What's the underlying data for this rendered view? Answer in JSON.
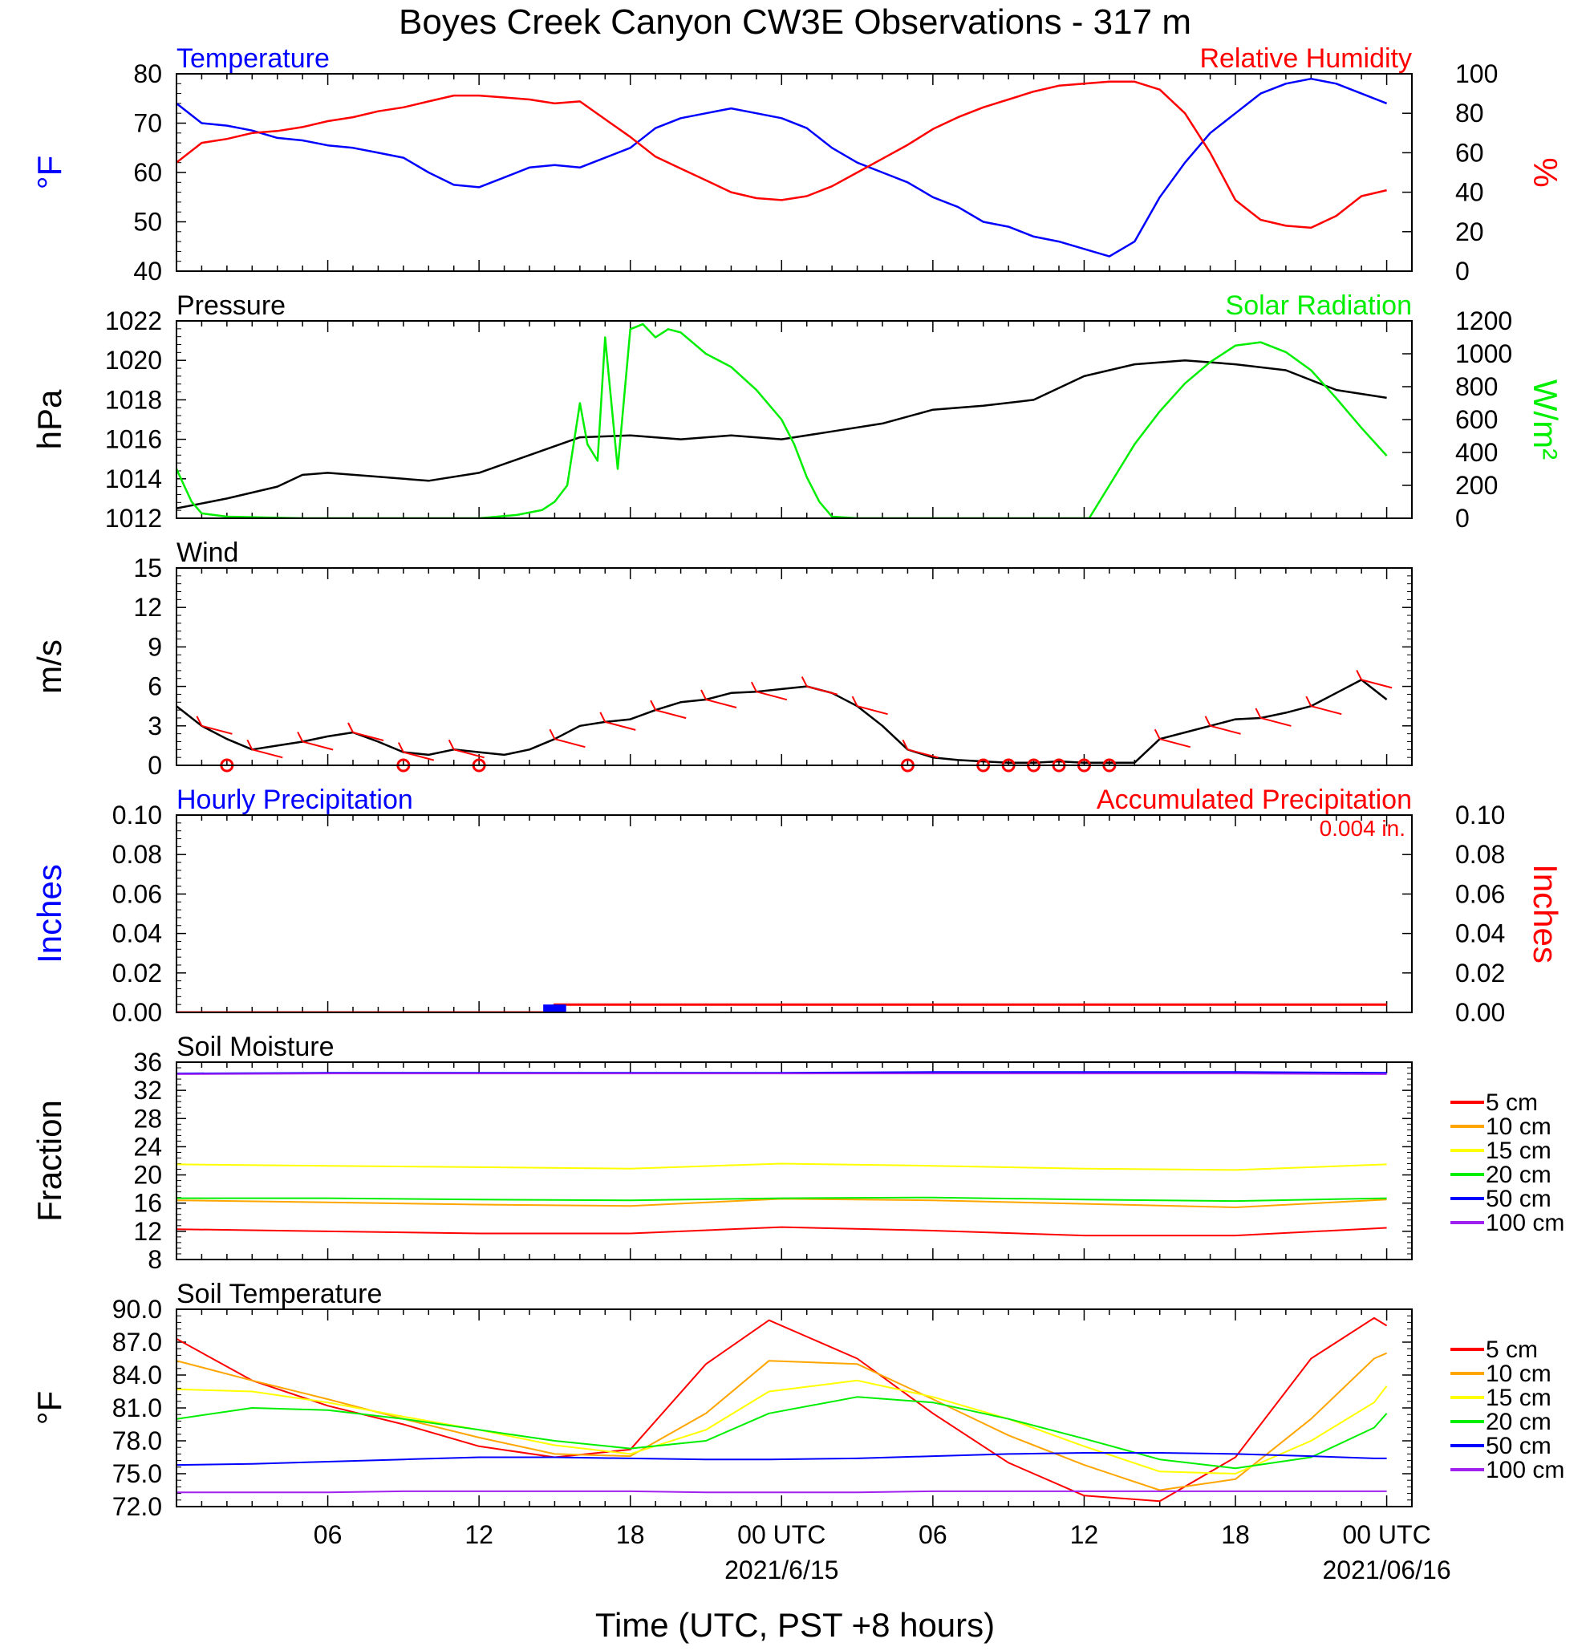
{
  "title": "Boyes Creek Canyon CW3E Observations - 317 m",
  "x_axis": {
    "label": "Time (UTC, PST +8 hours)",
    "ticks": [
      {
        "h": 6,
        "label": "06"
      },
      {
        "h": 12,
        "label": "12"
      },
      {
        "h": 18,
        "label": "18"
      },
      {
        "h": 24,
        "label": "00 UTC",
        "sub": "2021/6/15"
      },
      {
        "h": 30,
        "label": "06"
      },
      {
        "h": 36,
        "label": "12"
      },
      {
        "h": 42,
        "label": "18"
      },
      {
        "h": 48,
        "label": "00 UTC",
        "sub": "2021/06/16"
      }
    ],
    "range_hours": [
      0,
      49
    ]
  },
  "colors": {
    "temperature": "#0000ff",
    "humidity": "#ff0000",
    "pressure": "#000000",
    "solar": "#00ee00",
    "wind": "#000000",
    "barbs": "#ff0000",
    "hourly_precip": "#0000ff",
    "accum_precip": "#ff0000",
    "soil_5cm": "#ff0000",
    "soil_10cm": "#ffa500",
    "soil_15cm": "#ffff00",
    "soil_20cm": "#00ee00",
    "soil_50cm": "#0000ff",
    "soil_100cm": "#a020f0"
  },
  "chart_data": [
    {
      "type": "line",
      "id": "temp_rh",
      "title_left": "Temperature",
      "title_right": "Relative Humidity",
      "ylabel_left": "°F",
      "ylabel_right": "%",
      "ylim_left": [
        40,
        80
      ],
      "ylim_right": [
        0,
        100
      ],
      "yticks_left": [
        "40",
        "50",
        "60",
        "70",
        "80"
      ],
      "yticks_right": [
        "0",
        "20",
        "40",
        "60",
        "80",
        "100"
      ],
      "series": [
        {
          "name": "Temperature",
          "axis": "left",
          "color_key": "temperature",
          "x": [
            0,
            1,
            2,
            3,
            4,
            5,
            6,
            7,
            8,
            9,
            10,
            11,
            12,
            13,
            14,
            15,
            16,
            17,
            18,
            19,
            20,
            21,
            22,
            23,
            24,
            25,
            26,
            27,
            28,
            29,
            30,
            31,
            32,
            33,
            34,
            35,
            36,
            37,
            38,
            39,
            40,
            41,
            42,
            43,
            44,
            45,
            46,
            47,
            48
          ],
          "y": [
            74,
            70,
            69.5,
            68.5,
            67,
            66.5,
            65.5,
            65,
            64,
            63,
            60,
            57.5,
            57,
            59,
            61,
            61.5,
            61,
            63,
            65,
            69,
            71,
            72,
            73,
            72,
            71,
            69,
            65,
            62,
            60,
            58,
            55,
            53,
            50,
            49,
            47,
            46,
            44.5,
            43,
            46,
            55,
            62,
            68,
            72,
            76,
            78,
            79,
            78,
            76,
            74
          ]
        },
        {
          "name": "Relative Humidity",
          "axis": "right",
          "color_key": "humidity",
          "x": [
            0,
            1,
            2,
            3,
            4,
            5,
            6,
            7,
            8,
            9,
            10,
            11,
            12,
            13,
            14,
            15,
            16,
            17,
            18,
            19,
            20,
            21,
            22,
            23,
            24,
            25,
            26,
            27,
            28,
            29,
            30,
            31,
            32,
            33,
            34,
            35,
            36,
            37,
            38,
            39,
            40,
            41,
            42,
            43,
            44,
            45,
            46,
            47,
            48
          ],
          "y": [
            55,
            65,
            67,
            70,
            71,
            73,
            76,
            78,
            81,
            83,
            86,
            89,
            89,
            88,
            87,
            85,
            86,
            77,
            68,
            58,
            52,
            46,
            40,
            37,
            36,
            38,
            43,
            50,
            57,
            64,
            72,
            78,
            83,
            87,
            91,
            94,
            95,
            96,
            96,
            92,
            80,
            60,
            36,
            26,
            23,
            22,
            28,
            38,
            41
          ]
        }
      ]
    },
    {
      "type": "line",
      "id": "pressure_solar",
      "title_left": "Pressure",
      "title_right": "Solar Radiation",
      "ylabel_left": "hPa",
      "ylabel_right": "W/m²",
      "ylim_left": [
        1012,
        1022
      ],
      "ylim_right": [
        0,
        1200
      ],
      "yticks_left": [
        "1012",
        "1014",
        "1016",
        "1018",
        "1020",
        "1022"
      ],
      "yticks_right": [
        "0",
        "200",
        "400",
        "600",
        "800",
        "1000",
        "1200"
      ],
      "series": [
        {
          "name": "Pressure",
          "axis": "left",
          "color_key": "pressure",
          "x": [
            0,
            2,
            4,
            5,
            6,
            8,
            10,
            12,
            14,
            16,
            18,
            20,
            22,
            24,
            26,
            28,
            30,
            32,
            34,
            36,
            38,
            40,
            42,
            44,
            46,
            48
          ],
          "y": [
            1012.5,
            1013,
            1013.6,
            1014.2,
            1014.3,
            1014.1,
            1013.9,
            1014.3,
            1015.2,
            1016.1,
            1016.2,
            1016,
            1016.2,
            1016,
            1016.4,
            1016.8,
            1017.5,
            1017.7,
            1018,
            1019.2,
            1019.8,
            1020,
            1019.8,
            1019.5,
            1018.5,
            1018.1
          ]
        },
        {
          "name": "Solar Radiation",
          "axis": "right",
          "color_key": "solar",
          "x": [
            0,
            0.3,
            0.6,
            1,
            2,
            5,
            10,
            12,
            13.5,
            14.5,
            15,
            15.5,
            16,
            16.3,
            16.7,
            17,
            17.5,
            18,
            18.5,
            19,
            19.5,
            20,
            21,
            22,
            23,
            24,
            24.5,
            25,
            25.5,
            26,
            27,
            28,
            30,
            34,
            35.5,
            36.2,
            37,
            38,
            39,
            40,
            41,
            42,
            43,
            44,
            45,
            46,
            47,
            48
          ],
          "y": [
            300,
            200,
            100,
            30,
            10,
            0,
            0,
            0,
            20,
            50,
            100,
            200,
            700,
            450,
            350,
            1100,
            300,
            1150,
            1180,
            1100,
            1150,
            1130,
            1000,
            920,
            780,
            600,
            450,
            250,
            100,
            10,
            0,
            0,
            0,
            0,
            0,
            0,
            200,
            450,
            650,
            820,
            950,
            1050,
            1070,
            1010,
            900,
            730,
            550,
            380
          ]
        }
      ]
    },
    {
      "type": "line",
      "id": "wind",
      "title_left": "Wind",
      "ylabel_left": "m/s",
      "ylim_left": [
        0,
        15
      ],
      "yticks_left": [
        "0",
        "3",
        "6",
        "9",
        "12",
        "15"
      ],
      "series": [
        {
          "name": "Wind",
          "axis": "left",
          "color_key": "wind",
          "x": [
            0,
            1,
            2,
            3,
            4,
            5,
            6,
            7,
            8,
            9,
            10,
            11,
            12,
            13,
            14,
            15,
            16,
            17,
            18,
            19,
            20,
            21,
            22,
            23,
            24,
            25,
            26,
            27,
            28,
            29,
            30,
            31,
            32,
            33,
            34,
            35,
            36,
            37,
            38,
            39,
            40,
            41,
            42,
            43,
            44,
            45,
            46,
            47,
            48
          ],
          "y": [
            4.5,
            3,
            2,
            1.2,
            1.5,
            1.8,
            2.2,
            2.5,
            1.8,
            1,
            0.8,
            1.2,
            1,
            0.8,
            1.2,
            2,
            3,
            3.3,
            3.5,
            4.2,
            4.8,
            5,
            5.5,
            5.6,
            5.8,
            6,
            5.5,
            4.5,
            3,
            1.2,
            0.6,
            0.4,
            0.3,
            0.2,
            0.2,
            0.3,
            0.2,
            0.2,
            0.2,
            2,
            2.5,
            3,
            3.5,
            3.6,
            4,
            4.5,
            5.5,
            6.5,
            5
          ]
        }
      ],
      "calm_hours": [
        2,
        9,
        12,
        29,
        32,
        33,
        34,
        35,
        36,
        37
      ]
    },
    {
      "type": "bar",
      "id": "precip",
      "title_left": "Hourly Precipitation",
      "title_right": "Accumulated Precipitation",
      "annotation": "0.004 in.",
      "ylabel_left": "Inches",
      "ylabel_right": "Inches",
      "ylim_left": [
        0,
        0.1
      ],
      "ylim_right": [
        0,
        0.1
      ],
      "yticks_left": [
        "0.00",
        "0.02",
        "0.04",
        "0.06",
        "0.08",
        "0.10"
      ],
      "yticks_right": [
        "0.00",
        "0.02",
        "0.04",
        "0.06",
        "0.08",
        "0.10"
      ],
      "hourly": {
        "name": "Hourly Precipitation",
        "hours": [
          14.8,
          15.2
        ],
        "values": [
          0.004,
          0.004
        ]
      },
      "accumulated": {
        "name": "Accumulated Precipitation",
        "x": [
          0,
          14.9,
          15,
          48
        ],
        "y": [
          0,
          0,
          0.004,
          0.004
        ]
      }
    },
    {
      "type": "line",
      "id": "soil_moisture",
      "title_left": "Soil Moisture",
      "ylabel_left": "Fraction",
      "ylim_left": [
        8,
        36
      ],
      "yticks_left": [
        "8",
        "12",
        "16",
        "20",
        "24",
        "28",
        "32",
        "36"
      ],
      "x": [
        0,
        6,
        12,
        18,
        24,
        30,
        36,
        42,
        48
      ],
      "series": [
        {
          "name": "5 cm",
          "color_key": "soil_5cm",
          "y": [
            12.3,
            12,
            11.7,
            11.7,
            12.6,
            12.1,
            11.4,
            11.4,
            12.5
          ]
        },
        {
          "name": "10 cm",
          "color_key": "soil_10cm",
          "y": [
            16.4,
            16.1,
            15.8,
            15.6,
            16.6,
            16.4,
            15.9,
            15.4,
            16.5
          ]
        },
        {
          "name": "15 cm",
          "color_key": "soil_15cm",
          "y": [
            21.5,
            21.3,
            21.1,
            20.9,
            21.6,
            21.3,
            20.9,
            20.7,
            21.5
          ]
        },
        {
          "name": "20 cm",
          "color_key": "soil_20cm",
          "y": [
            16.7,
            16.7,
            16.5,
            16.4,
            16.7,
            16.8,
            16.5,
            16.3,
            16.7
          ]
        },
        {
          "name": "50 cm",
          "color_key": "soil_50cm",
          "y": [
            34.4,
            34.5,
            34.5,
            34.5,
            34.5,
            34.6,
            34.6,
            34.6,
            34.5
          ]
        },
        {
          "name": "100 cm",
          "color_key": "soil_100cm",
          "y": [
            34.3,
            34.4,
            34.4,
            34.4,
            34.4,
            34.4,
            34.4,
            34.4,
            34.3
          ]
        }
      ]
    },
    {
      "type": "line",
      "id": "soil_temperature",
      "title_left": "Soil Temperature",
      "ylabel_left": "°F",
      "ylim_left": [
        72,
        90
      ],
      "yticks_left": [
        "72.0",
        "75.0",
        "78.0",
        "81.0",
        "84.0",
        "87.0",
        "90.0"
      ],
      "x": [
        0,
        3,
        6,
        9,
        12,
        15,
        18,
        21,
        23.5,
        27,
        30,
        33,
        36,
        39,
        42,
        45,
        47.5,
        48
      ],
      "series": [
        {
          "name": "5 cm",
          "color_key": "soil_5cm",
          "y": [
            87.3,
            83.5,
            81.2,
            79.5,
            77.5,
            76.5,
            77.2,
            85,
            89,
            85.5,
            80.5,
            76,
            73,
            72.5,
            76.5,
            85.5,
            89.2,
            88.5
          ]
        },
        {
          "name": "10 cm",
          "color_key": "soil_10cm",
          "y": [
            85.3,
            83.5,
            81.8,
            80,
            78.3,
            76.8,
            76.6,
            80.5,
            85.3,
            85,
            81.8,
            78.5,
            75.8,
            73.5,
            74.5,
            80,
            85.5,
            86
          ]
        },
        {
          "name": "15 cm",
          "color_key": "soil_15cm",
          "y": [
            82.7,
            82.5,
            81.5,
            80.2,
            79,
            77.6,
            76.8,
            79,
            82.5,
            83.5,
            82,
            80,
            77.5,
            75.2,
            75,
            78,
            81.5,
            83
          ]
        },
        {
          "name": "20 cm",
          "color_key": "soil_20cm",
          "y": [
            80,
            81,
            80.8,
            80,
            79,
            78,
            77.3,
            78,
            80.5,
            82,
            81.5,
            80,
            78.2,
            76.3,
            75.5,
            76.5,
            79.2,
            80.5
          ]
        },
        {
          "name": "50 cm",
          "color_key": "soil_50cm",
          "y": [
            75.8,
            75.9,
            76.1,
            76.3,
            76.5,
            76.5,
            76.4,
            76.3,
            76.3,
            76.4,
            76.6,
            76.8,
            76.9,
            76.9,
            76.8,
            76.6,
            76.4,
            76.4
          ]
        },
        {
          "name": "100 cm",
          "color_key": "soil_100cm",
          "y": [
            73.3,
            73.3,
            73.3,
            73.4,
            73.4,
            73.4,
            73.4,
            73.3,
            73.3,
            73.3,
            73.4,
            73.4,
            73.4,
            73.4,
            73.4,
            73.4,
            73.4,
            73.4
          ]
        }
      ]
    }
  ]
}
